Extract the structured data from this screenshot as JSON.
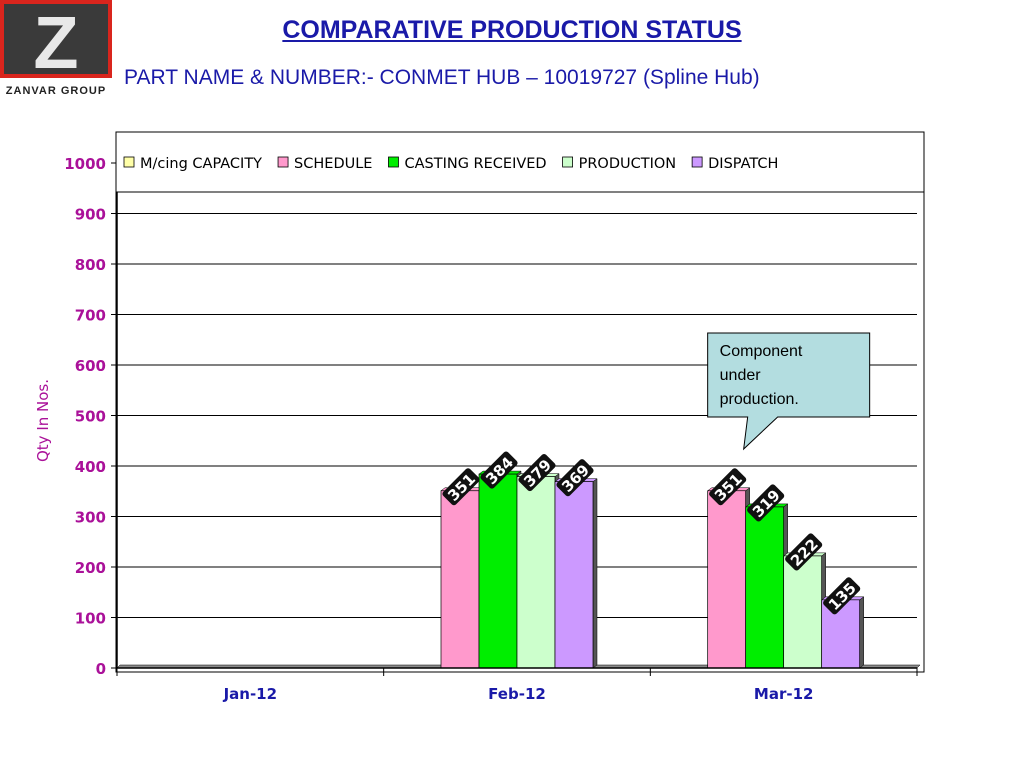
{
  "logo": {
    "letter": "Z",
    "text": "ZANVAR GROUP",
    "color": "#d9251d"
  },
  "header": {
    "title": "COMPARATIVE PRODUCTION STATUS",
    "subtitle": "PART NAME & NUMBER:- CONMET HUB – 10019727 (Spline Hub)"
  },
  "chart_data": {
    "type": "bar",
    "categories": [
      "Jan-12",
      "Feb-12",
      "Mar-12"
    ],
    "series": [
      {
        "name": "M/cing CAPACITY",
        "values": [
          0,
          0,
          0
        ],
        "color": "#ffffa8"
      },
      {
        "name": "SCHEDULE",
        "values": [
          0,
          351,
          351
        ],
        "color": "#ff99cc"
      },
      {
        "name": "CASTING RECEIVED",
        "values": [
          0,
          384,
          319
        ],
        "color": "#00ee00"
      },
      {
        "name": "PRODUCTION",
        "values": [
          0,
          379,
          222
        ],
        "color": "#ccffcc"
      },
      {
        "name": "DISPATCH",
        "values": [
          0,
          369,
          135
        ],
        "color": "#cc99ff"
      }
    ],
    "data_labels": [
      {
        "category": "Feb-12",
        "series": "SCHEDULE",
        "text": "351"
      },
      {
        "category": "Feb-12",
        "series": "CASTING RECEIVED",
        "text": "384"
      },
      {
        "category": "Feb-12",
        "series": "PRODUCTION",
        "text": "379"
      },
      {
        "category": "Feb-12",
        "series": "DISPATCH",
        "text": "369"
      },
      {
        "category": "Mar-12",
        "series": "SCHEDULE",
        "text": "351"
      },
      {
        "category": "Mar-12",
        "series": "CASTING RECEIVED",
        "text": "319"
      },
      {
        "category": "Mar-12",
        "series": "PRODUCTION",
        "text": "222"
      },
      {
        "category": "Mar-12",
        "series": "DISPATCH",
        "text": "135"
      }
    ],
    "ylabel": "Qty In  Nos.",
    "xlabel": "",
    "ylim": [
      0,
      1000
    ],
    "yticks": [
      0,
      100,
      200,
      300,
      400,
      500,
      600,
      700,
      800,
      900,
      1000
    ],
    "grid": true,
    "legend_position": "top",
    "annotation": {
      "text": "Component under production.",
      "category": "Mar-12",
      "fill": "#b3dde0"
    },
    "colors": {
      "axis_text": "#aa1199",
      "category_text": "#1a1aa8"
    }
  }
}
